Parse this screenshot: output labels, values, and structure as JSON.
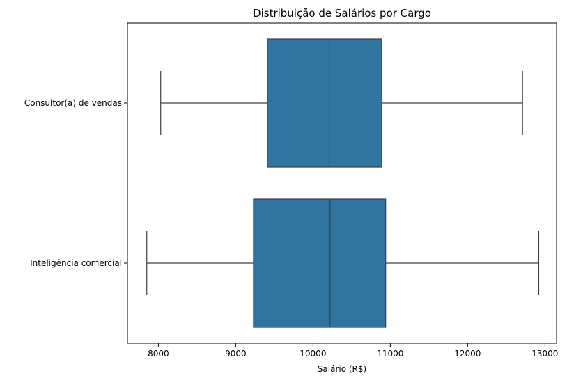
{
  "chart_data": {
    "type": "boxplot",
    "title": "Distribuição de Salários por Cargo",
    "xlabel": "Salário (R$)",
    "ylabel": "",
    "orientation": "horizontal",
    "xlim": [
      7600,
      13150
    ],
    "xticks": [
      8000,
      9000,
      10000,
      11000,
      12000,
      13000
    ],
    "xtick_labels": [
      "8000",
      "9000",
      "10000",
      "11000",
      "12000",
      "13000"
    ],
    "categories": [
      "Consultor(a) de vendas",
      "Inteligência comercial"
    ],
    "boxes": [
      {
        "category": "Consultor(a) de vendas",
        "whisker_low": 8030,
        "q1": 9410,
        "median": 10210,
        "q3": 10890,
        "whisker_high": 12710
      },
      {
        "category": "Inteligência comercial",
        "whisker_low": 7850,
        "q1": 9230,
        "median": 10220,
        "q3": 10940,
        "whisker_high": 12920
      }
    ],
    "colors": {
      "box_fill": "#3274a1",
      "line": "#3f3f3f"
    },
    "grid": false,
    "legend": "none"
  }
}
